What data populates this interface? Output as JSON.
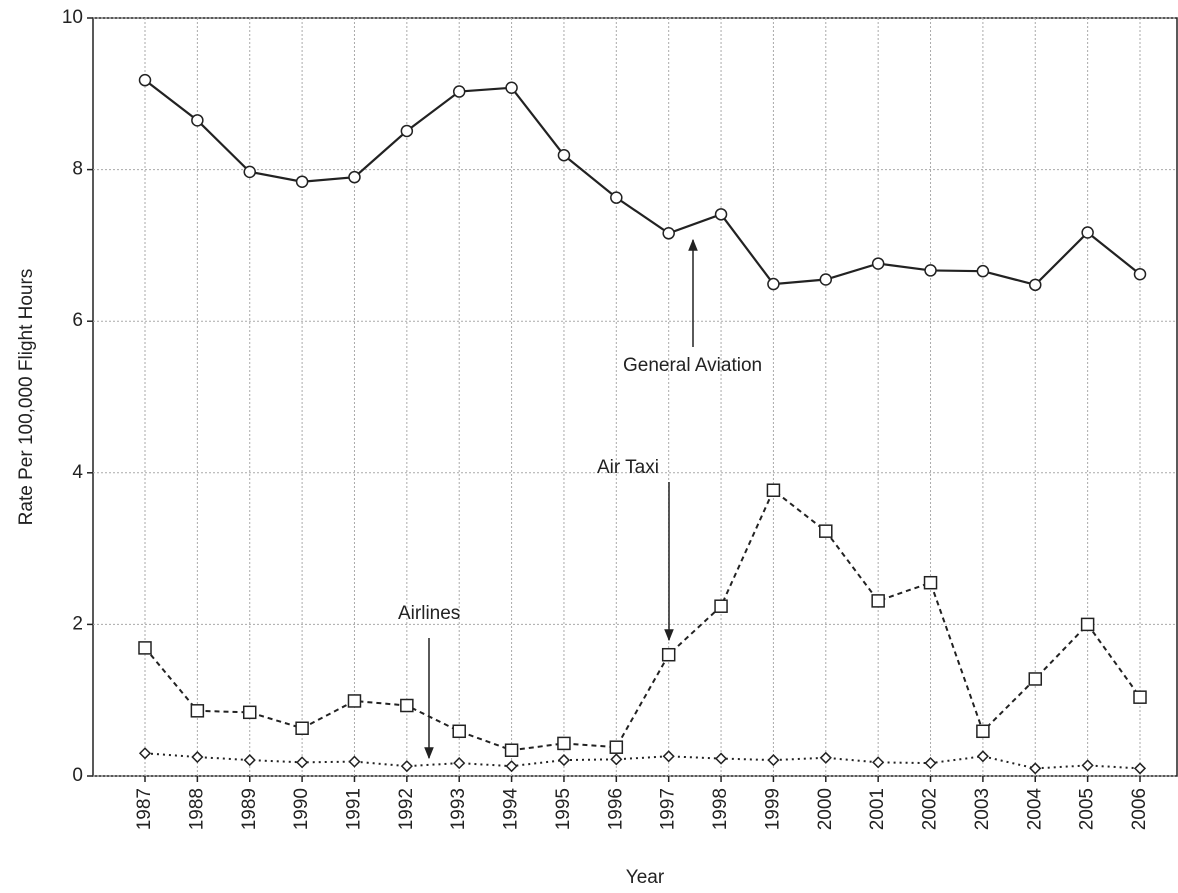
{
  "chart_data": {
    "type": "line",
    "xlabel": "Year",
    "ylabel": "Rate Per 100,000 Flight Hours",
    "categories": [
      "1987",
      "1988",
      "1989",
      "1990",
      "1991",
      "1992",
      "1993",
      "1994",
      "1995",
      "1996",
      "1997",
      "1998",
      "1999",
      "2000",
      "2001",
      "2002",
      "2003",
      "2004",
      "2005",
      "2006"
    ],
    "series": [
      {
        "name": "General Aviation",
        "color": "#222222",
        "marker": "circle",
        "linestyle": "solid",
        "values": [
          9.18,
          8.65,
          7.97,
          7.84,
          7.9,
          8.51,
          9.03,
          9.08,
          8.19,
          7.63,
          7.16,
          7.41,
          6.49,
          6.55,
          6.76,
          6.67,
          6.66,
          6.48,
          7.17,
          6.62
        ]
      },
      {
        "name": "Air Taxi",
        "color": "#222222",
        "marker": "square",
        "linestyle": "dashed",
        "values": [
          1.69,
          0.86,
          0.84,
          0.63,
          0.99,
          0.93,
          0.59,
          0.34,
          0.43,
          0.38,
          1.6,
          2.24,
          3.77,
          3.23,
          2.31,
          2.55,
          0.59,
          1.28,
          2.0,
          1.04
        ]
      },
      {
        "name": "Airlines",
        "color": "#222222",
        "marker": "diamond",
        "linestyle": "dotted",
        "values": [
          0.3,
          0.25,
          0.21,
          0.18,
          0.19,
          0.13,
          0.17,
          0.13,
          0.21,
          0.22,
          0.26,
          0.23,
          0.21,
          0.24,
          0.18,
          0.17,
          0.26,
          0.1,
          0.14,
          0.1
        ]
      }
    ],
    "ylim": [
      0,
      10
    ],
    "yticks": [
      0,
      2,
      4,
      6,
      8,
      10
    ],
    "grid": true
  }
}
